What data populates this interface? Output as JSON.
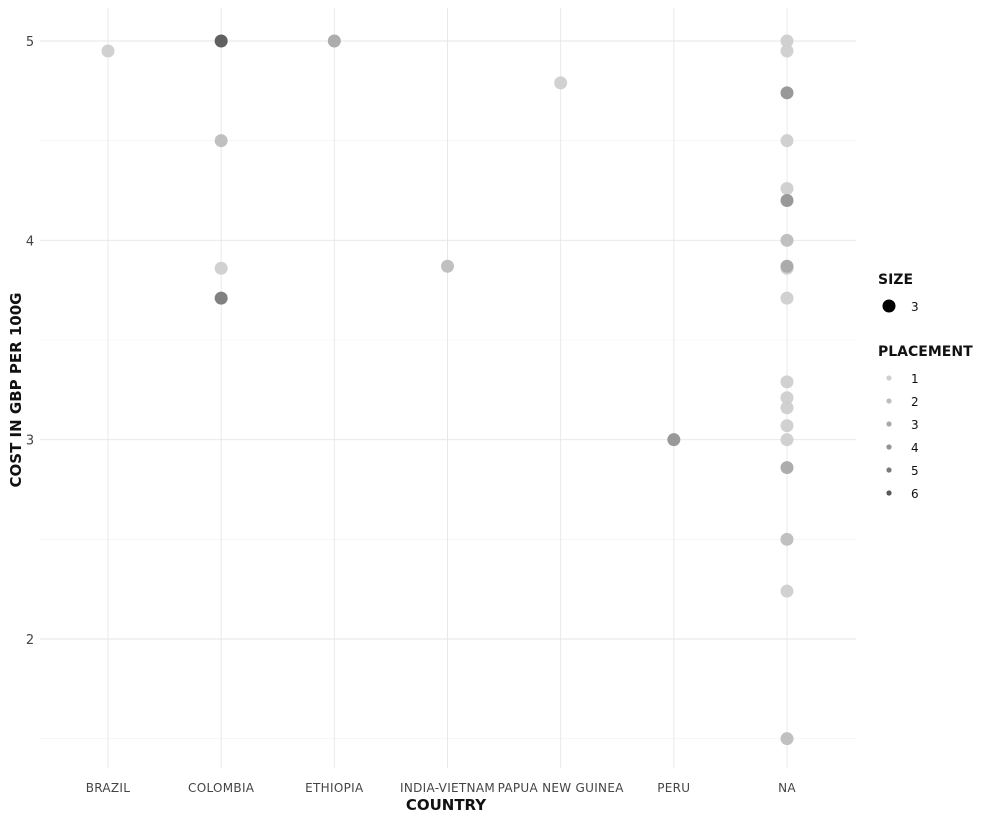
{
  "chart_data": {
    "type": "scatter",
    "xlabel": "COUNTRY",
    "ylabel": "COST IN GBP PER 100G",
    "categories": [
      "BRAZIL",
      "COLOMBIA",
      "ETHIOPIA",
      "INDIA-VIETNAM",
      "PAPUA NEW GUINEA",
      "PERU",
      "NA"
    ],
    "ylim": [
      1.5,
      5
    ],
    "yticks": [
      2,
      3,
      4,
      5
    ],
    "grid": true,
    "legend_position": "right",
    "legends": [
      {
        "title": "SIZE",
        "entries": [
          {
            "label": "3",
            "color": "#000000"
          }
        ]
      },
      {
        "title": "PLACEMENT",
        "entries": [
          {
            "label": "1",
            "color": "#cfcfcf"
          },
          {
            "label": "2",
            "color": "#bdbdbd"
          },
          {
            "label": "3",
            "color": "#a9a9a9"
          },
          {
            "label": "4",
            "color": "#939393"
          },
          {
            "label": "5",
            "color": "#7a7a7a"
          },
          {
            "label": "6",
            "color": "#595959"
          }
        ]
      }
    ],
    "points": [
      {
        "x": "BRAZIL",
        "y": 4.95,
        "placement": 1
      },
      {
        "x": "COLOMBIA",
        "y": 5.0,
        "placement": 6
      },
      {
        "x": "COLOMBIA",
        "y": 4.5,
        "placement": 2
      },
      {
        "x": "COLOMBIA",
        "y": 3.86,
        "placement": 1
      },
      {
        "x": "COLOMBIA",
        "y": 3.71,
        "placement": 5
      },
      {
        "x": "ETHIOPIA",
        "y": 5.0,
        "placement": 3
      },
      {
        "x": "INDIA-VIETNAM",
        "y": 3.87,
        "placement": 2
      },
      {
        "x": "PAPUA NEW GUINEA",
        "y": 4.79,
        "placement": 1
      },
      {
        "x": "PERU",
        "y": 3.0,
        "placement": 4
      },
      {
        "x": "NA",
        "y": 5.0,
        "placement": 1
      },
      {
        "x": "NA",
        "y": 4.95,
        "placement": 1
      },
      {
        "x": "NA",
        "y": 4.74,
        "placement": 4
      },
      {
        "x": "NA",
        "y": 4.5,
        "placement": 1
      },
      {
        "x": "NA",
        "y": 4.26,
        "placement": 1
      },
      {
        "x": "NA",
        "y": 4.2,
        "placement": 4
      },
      {
        "x": "NA",
        "y": 4.0,
        "placement": 2
      },
      {
        "x": "NA",
        "y": 3.87,
        "placement": 3
      },
      {
        "x": "NA",
        "y": 3.86,
        "placement": 1
      },
      {
        "x": "NA",
        "y": 3.71,
        "placement": 1
      },
      {
        "x": "NA",
        "y": 3.29,
        "placement": 1
      },
      {
        "x": "NA",
        "y": 3.21,
        "placement": 1
      },
      {
        "x": "NA",
        "y": 3.16,
        "placement": 1
      },
      {
        "x": "NA",
        "y": 3.07,
        "placement": 1
      },
      {
        "x": "NA",
        "y": 3.0,
        "placement": 1
      },
      {
        "x": "NA",
        "y": 2.86,
        "placement": 3
      },
      {
        "x": "NA",
        "y": 2.5,
        "placement": 2
      },
      {
        "x": "NA",
        "y": 2.24,
        "placement": 1
      },
      {
        "x": "NA",
        "y": 1.5,
        "placement": 2
      }
    ]
  }
}
